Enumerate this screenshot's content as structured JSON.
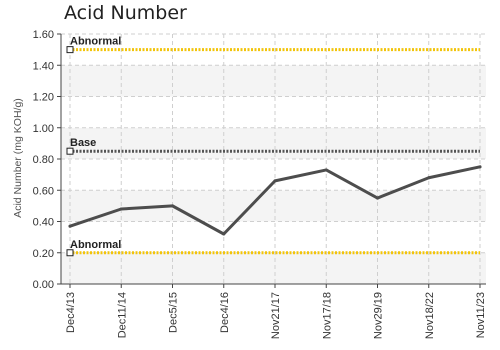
{
  "chart_data": {
    "type": "line",
    "title": "Acid Number",
    "ylabel": "Acid Number (mg KOH/g)",
    "xlabel": "",
    "ylim": [
      0,
      1.6
    ],
    "yticks": [
      "0.00",
      "0.20",
      "0.40",
      "0.60",
      "0.80",
      "1.00",
      "1.20",
      "1.40",
      "1.60"
    ],
    "categories": [
      "Dec4/13",
      "Dec11/14",
      "Dec5/15",
      "Dec4/16",
      "Nov21/17",
      "Nov17/18",
      "Nov29/19",
      "Nov18/22",
      "Nov11/23"
    ],
    "series": [
      {
        "values": [
          0.37,
          0.48,
          0.5,
          0.32,
          0.66,
          0.73,
          0.55,
          0.68,
          0.75
        ],
        "color": "#4d4d4d"
      }
    ],
    "reference_lines": [
      {
        "label": "Abnormal",
        "value": 1.5,
        "color": "#f2c40a",
        "style": "dotted"
      },
      {
        "label": "Base",
        "value": 0.85,
        "color": "#555555",
        "style": "dotted"
      },
      {
        "label": "Abnormal",
        "value": 0.2,
        "color": "#f2c40a",
        "style": "dotted"
      }
    ],
    "grid": true,
    "band_colors": [
      "#ffffff",
      "#f4f4f4"
    ]
  }
}
